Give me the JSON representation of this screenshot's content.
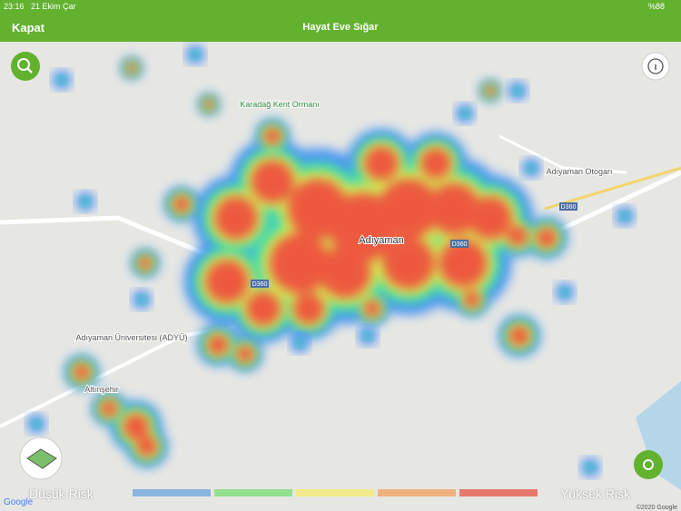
{
  "status_bar": {
    "time": "23:16",
    "date": "21 Ekim Çar",
    "battery": "%88"
  },
  "header": {
    "close": "Kapat",
    "title": "Hayat Eve Sığar"
  },
  "map": {
    "labels": [
      "Karadağ Kent Ormanı",
      "Adıyaman Otogarı",
      "Adıyaman",
      "Adıyaman Üniversitesi (ADYÜ)",
      "Altınşehir",
      "D360",
      "D360",
      "D360"
    ],
    "attribution": "Google",
    "copyright": "©2020 Google"
  },
  "legend": {
    "low": "Düşük Risk",
    "high": "Yüksek Risk"
  }
}
